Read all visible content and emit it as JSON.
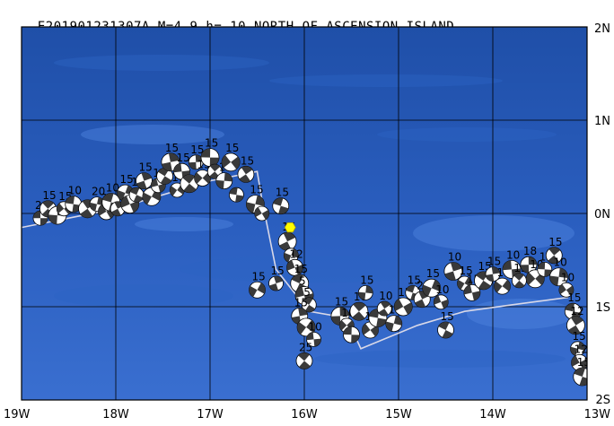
{
  "event": {
    "id": "E201901231307A",
    "magnitude": "M=4.9",
    "depth": "h= 10",
    "region": "NORTH OF ASCENSION ISLAND"
  },
  "map": {
    "lon_range": [
      -19,
      -13
    ],
    "lat_range": [
      -2,
      2
    ],
    "lon_ticks": [
      {
        "value": -19,
        "label": "19W"
      },
      {
        "value": -18,
        "label": "18W"
      },
      {
        "value": -17,
        "label": "17W"
      },
      {
        "value": -16,
        "label": "16W"
      },
      {
        "value": -15,
        "label": "15W"
      },
      {
        "value": -14,
        "label": "14W"
      },
      {
        "value": -13,
        "label": "13W"
      }
    ],
    "lat_ticks": [
      {
        "value": 2,
        "label": "2N"
      },
      {
        "value": 1,
        "label": "1N"
      },
      {
        "value": 0,
        "label": "0N"
      },
      {
        "value": -1,
        "label": "1S"
      },
      {
        "value": -2,
        "label": "2S"
      }
    ],
    "colors": {
      "ocean_deep": "#1f4fa8",
      "ocean_mid": "#2d63c4",
      "ocean_light": "#4f86df",
      "grid": "#000000",
      "plate_boundary": "#d8d8e8",
      "epicenter": "#ffff00",
      "beachball_dark": "#3a3a3a",
      "beachball_light": "#ffffff"
    },
    "epicenter": {
      "lon": -16.15,
      "lat": -0.15,
      "icon": "yellow-hexagon-icon"
    },
    "plate_boundary": [
      [
        -19,
        -0.15
      ],
      [
        -18.5,
        -0.05
      ],
      [
        -18,
        0.05
      ],
      [
        -17.5,
        0.2
      ],
      [
        -17,
        0.35
      ],
      [
        -16.5,
        0.45
      ],
      [
        -16.45,
        0.15
      ],
      [
        -16.3,
        -0.6
      ],
      [
        -15.95,
        -1.05
      ],
      [
        -15.55,
        -1.12
      ],
      [
        -15.4,
        -1.45
      ],
      [
        -14.8,
        -1.2
      ],
      [
        -14.3,
        -1.05
      ],
      [
        -13.8,
        -0.98
      ],
      [
        -13.2,
        -0.9
      ]
    ],
    "events": [
      {
        "lon": -18.8,
        "lat": -0.05,
        "label": "2"
      },
      {
        "lon": -18.72,
        "lat": 0.05,
        "label": "15"
      },
      {
        "lon": -18.62,
        "lat": -0.02,
        "label": ""
      },
      {
        "lon": -18.55,
        "lat": 0.05,
        "label": "15"
      },
      {
        "lon": -18.45,
        "lat": 0.1,
        "label": "10"
      },
      {
        "lon": -18.3,
        "lat": 0.05,
        "label": ""
      },
      {
        "lon": -18.2,
        "lat": 0.1,
        "label": "20"
      },
      {
        "lon": -18.1,
        "lat": 0.02,
        "label": "20"
      },
      {
        "lon": -18.05,
        "lat": 0.12,
        "label": "10"
      },
      {
        "lon": -17.98,
        "lat": 0.05,
        "label": ""
      },
      {
        "lon": -17.9,
        "lat": 0.22,
        "label": "15"
      },
      {
        "lon": -17.85,
        "lat": 0.1,
        "label": ""
      },
      {
        "lon": -17.78,
        "lat": 0.2,
        "label": "10"
      },
      {
        "lon": -17.7,
        "lat": 0.35,
        "label": "15"
      },
      {
        "lon": -17.62,
        "lat": 0.18,
        "label": ""
      },
      {
        "lon": -17.55,
        "lat": 0.3,
        "label": "15"
      },
      {
        "lon": -17.48,
        "lat": 0.4,
        "label": ""
      },
      {
        "lon": -17.42,
        "lat": 0.55,
        "label": "15"
      },
      {
        "lon": -17.35,
        "lat": 0.25,
        "label": "10"
      },
      {
        "lon": -17.3,
        "lat": 0.45,
        "label": "15"
      },
      {
        "lon": -17.22,
        "lat": 0.32,
        "label": ""
      },
      {
        "lon": -17.15,
        "lat": 0.55,
        "label": "15"
      },
      {
        "lon": -17.08,
        "lat": 0.38,
        "label": "15"
      },
      {
        "lon": -17.0,
        "lat": 0.6,
        "label": "15"
      },
      {
        "lon": -16.95,
        "lat": 0.45,
        "label": ""
      },
      {
        "lon": -16.85,
        "lat": 0.35,
        "label": "15"
      },
      {
        "lon": -16.78,
        "lat": 0.55,
        "label": "15"
      },
      {
        "lon": -16.72,
        "lat": 0.2,
        "label": ""
      },
      {
        "lon": -16.62,
        "lat": 0.42,
        "label": "15"
      },
      {
        "lon": -16.52,
        "lat": 0.1,
        "label": "15"
      },
      {
        "lon": -16.45,
        "lat": 0.0,
        "label": ""
      },
      {
        "lon": -16.25,
        "lat": 0.08,
        "label": "15"
      },
      {
        "lon": -16.18,
        "lat": -0.3,
        "label": "15"
      },
      {
        "lon": -16.14,
        "lat": -0.45,
        "label": ""
      },
      {
        "lon": -16.1,
        "lat": -0.58,
        "label": "12"
      },
      {
        "lon": -16.05,
        "lat": -0.75,
        "label": "15"
      },
      {
        "lon": -16.3,
        "lat": -0.75,
        "label": "15"
      },
      {
        "lon": -16.5,
        "lat": -0.82,
        "label": "15"
      },
      {
        "lon": -16.0,
        "lat": -0.88,
        "label": "5"
      },
      {
        "lon": -15.95,
        "lat": -0.98,
        "label": "5"
      },
      {
        "lon": -16.05,
        "lat": -1.1,
        "label": "15"
      },
      {
        "lon": -15.98,
        "lat": -1.22,
        "label": ""
      },
      {
        "lon": -15.9,
        "lat": -1.35,
        "label": "10"
      },
      {
        "lon": -16.0,
        "lat": -1.58,
        "label": "25"
      },
      {
        "lon": -15.62,
        "lat": -1.1,
        "label": "15"
      },
      {
        "lon": -15.55,
        "lat": -1.2,
        "label": "10"
      },
      {
        "lon": -15.5,
        "lat": -1.3,
        "label": ""
      },
      {
        "lon": -15.42,
        "lat": -1.05,
        "label": "10"
      },
      {
        "lon": -15.35,
        "lat": -0.85,
        "label": "15"
      },
      {
        "lon": -15.3,
        "lat": -1.25,
        "label": "10"
      },
      {
        "lon": -15.22,
        "lat": -1.12,
        "label": ""
      },
      {
        "lon": -15.15,
        "lat": -1.02,
        "label": "10"
      },
      {
        "lon": -15.05,
        "lat": -1.18,
        "label": "10"
      },
      {
        "lon": -14.95,
        "lat": -1.0,
        "label": "15"
      },
      {
        "lon": -14.85,
        "lat": -0.85,
        "label": "15"
      },
      {
        "lon": -14.75,
        "lat": -0.92,
        "label": "20"
      },
      {
        "lon": -14.65,
        "lat": -0.8,
        "label": "15"
      },
      {
        "lon": -14.55,
        "lat": -0.95,
        "label": "10"
      },
      {
        "lon": -14.5,
        "lat": -1.25,
        "label": "15"
      },
      {
        "lon": -14.42,
        "lat": -0.62,
        "label": "10"
      },
      {
        "lon": -14.3,
        "lat": -0.75,
        "label": "15"
      },
      {
        "lon": -14.22,
        "lat": -0.85,
        "label": "15"
      },
      {
        "lon": -14.1,
        "lat": -0.72,
        "label": "15"
      },
      {
        "lon": -14.0,
        "lat": -0.65,
        "label": "15"
      },
      {
        "lon": -13.9,
        "lat": -0.78,
        "label": "10"
      },
      {
        "lon": -13.8,
        "lat": -0.6,
        "label": "10"
      },
      {
        "lon": -13.72,
        "lat": -0.72,
        "label": "15"
      },
      {
        "lon": -13.62,
        "lat": -0.55,
        "label": "18"
      },
      {
        "lon": -13.55,
        "lat": -0.7,
        "label": "10"
      },
      {
        "lon": -13.45,
        "lat": -0.6,
        "label": "15"
      },
      {
        "lon": -13.35,
        "lat": -0.45,
        "label": "15"
      },
      {
        "lon": -13.3,
        "lat": -0.68,
        "label": "10"
      },
      {
        "lon": -13.22,
        "lat": -0.82,
        "label": "10"
      },
      {
        "lon": -13.15,
        "lat": -1.05,
        "label": "15"
      },
      {
        "lon": -13.12,
        "lat": -1.2,
        "label": "12"
      },
      {
        "lon": -13.1,
        "lat": -1.45,
        "label": "15"
      },
      {
        "lon": -13.08,
        "lat": -1.6,
        "label": "12"
      },
      {
        "lon": -13.05,
        "lat": -1.75,
        "label": "15"
      }
    ]
  }
}
